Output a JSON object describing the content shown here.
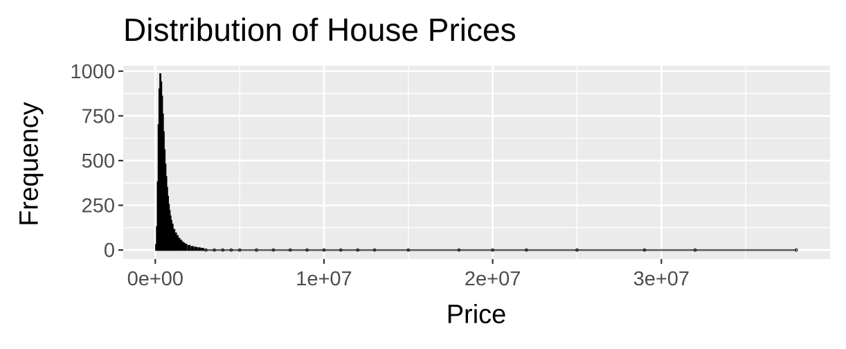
{
  "chart_data": {
    "type": "bar",
    "subtype": "histogram",
    "title": "Distribution of House Prices",
    "xlabel": "Price",
    "ylabel": "Frequency",
    "x_ticks": [
      {
        "value": 0,
        "label": "0e+00"
      },
      {
        "value": 10000000,
        "label": "1e+07"
      },
      {
        "value": 20000000,
        "label": "2e+07"
      },
      {
        "value": 30000000,
        "label": "3e+07"
      }
    ],
    "y_ticks": [
      {
        "value": 0,
        "label": "0"
      },
      {
        "value": 250,
        "label": "250"
      },
      {
        "value": 500,
        "label": "500"
      },
      {
        "value": 750,
        "label": "750"
      },
      {
        "value": 1000,
        "label": "1000"
      }
    ],
    "xlim": [
      -1900000,
      40000000
    ],
    "ylim": [
      -50,
      1030
    ],
    "grid": true,
    "bins": {
      "x": [
        50000,
        100000,
        150000,
        200000,
        250000,
        300000,
        350000,
        400000,
        450000,
        500000,
        550000,
        600000,
        650000,
        700000,
        750000,
        800000,
        850000,
        900000,
        950000,
        1000000,
        1100000,
        1200000,
        1300000,
        1400000,
        1500000,
        1600000,
        1700000,
        1800000,
        2000000,
        2200000,
        2400000,
        2600000,
        2800000,
        3000000,
        3500000,
        4000000,
        4500000,
        5000000,
        6000000,
        7000000,
        8000000,
        9000000,
        10000000,
        11000000,
        12000000,
        13000000,
        15000000,
        18000000,
        20000000,
        22000000,
        25000000,
        29000000,
        32000000,
        38000000
      ],
      "y": [
        30,
        130,
        380,
        700,
        900,
        985,
        940,
        860,
        760,
        660,
        560,
        480,
        410,
        350,
        300,
        255,
        220,
        190,
        165,
        145,
        115,
        95,
        80,
        65,
        55,
        45,
        38,
        32,
        25,
        19,
        15,
        12,
        9,
        7,
        5,
        4,
        3,
        2,
        2,
        1,
        1,
        1,
        1,
        1,
        1,
        1,
        1,
        1,
        1,
        1,
        1,
        1,
        1,
        1
      ]
    },
    "colors": {
      "panel": "#ebebeb",
      "grid": "#ffffff",
      "bar": "#000000",
      "baseline": "#595959",
      "tick_text": "#4d4d4d",
      "tick_mark": "#333333"
    }
  }
}
